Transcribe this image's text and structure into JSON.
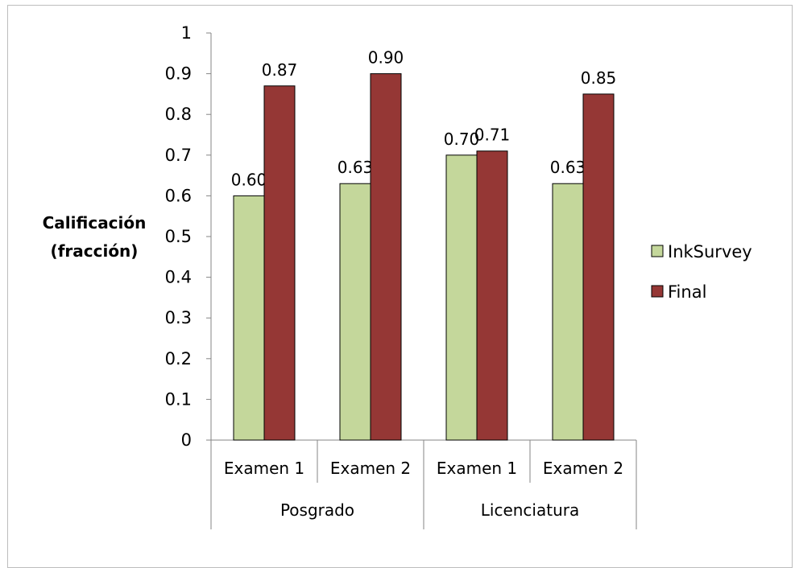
{
  "chart_data": {
    "type": "bar",
    "ylabel": "Calificación (fracción)",
    "ylabel_lines": [
      "Calificación",
      "(fracción)"
    ],
    "ylim": [
      0,
      1
    ],
    "yticks": [
      "0",
      "0.1",
      "0.2",
      "0.3",
      "0.4",
      "0.5",
      "0.6",
      "0.7",
      "0.8",
      "0.9",
      "1"
    ],
    "categories": [
      "Examen 1",
      "Examen 2",
      "Examen 1",
      "Examen 2"
    ],
    "groups": [
      {
        "label": "Posgrado",
        "categories": [
          "Examen 1",
          "Examen 2"
        ]
      },
      {
        "label": "Licenciatura",
        "categories": [
          "Examen 1",
          "Examen 2"
        ]
      }
    ],
    "series": [
      {
        "name": "InkSurvey",
        "color": "#c4d79b",
        "values": [
          0.6,
          0.63,
          0.7,
          0.63
        ],
        "labels": [
          "0.60",
          "0.63",
          "0.70",
          "0.63"
        ]
      },
      {
        "name": "Final",
        "color": "#953735",
        "values": [
          0.87,
          0.9,
          0.71,
          0.85
        ],
        "labels": [
          "0.87",
          "0.90",
          "0.71",
          "0.85"
        ]
      }
    ],
    "legend": "right",
    "grid": false
  }
}
